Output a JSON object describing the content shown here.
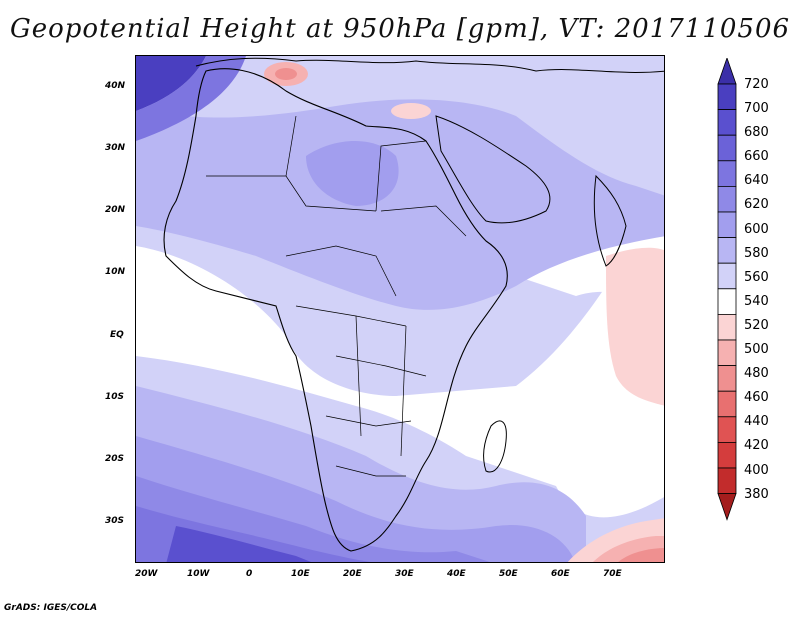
{
  "title": "Geopotential Height at 950hPa [gpm], VT: 2017110506",
  "credit": "GrADS: IGES/COLA",
  "axes": {
    "lon_ticks": [
      "20W",
      "10W",
      "0",
      "10E",
      "20E",
      "30E",
      "40E",
      "50E",
      "60E",
      "70E"
    ],
    "lat_ticks": [
      "40N",
      "30N",
      "20N",
      "10N",
      "EQ",
      "10S",
      "20S",
      "30S"
    ]
  },
  "colorbar": {
    "labels": [
      "720",
      "700",
      "680",
      "660",
      "640",
      "620",
      "600",
      "580",
      "560",
      "540",
      "520",
      "500",
      "480",
      "460",
      "440",
      "420",
      "400",
      "380"
    ],
    "colors": [
      "#3b2fa8",
      "#4a3fc0",
      "#5a50cf",
      "#6b62d8",
      "#7d75e0",
      "#8f89e7",
      "#a29eee",
      "#b8b6f3",
      "#d2d2f8",
      "#ffffff",
      "#fbd4d4",
      "#f6b1b1",
      "#ef9090",
      "#e87070",
      "#e05353",
      "#d43d3d",
      "#c22c2c",
      "#a41d1d"
    ]
  },
  "chart_data": {
    "type": "heatmap",
    "variable": "Geopotential Height at 950hPa [gpm]",
    "valid_time": "2017110506",
    "lon_range": [
      -22,
      80
    ],
    "lat_range": [
      -37,
      45
    ],
    "levels": [
      380,
      400,
      420,
      440,
      460,
      480,
      500,
      520,
      540,
      560,
      580,
      600,
      620,
      640,
      660,
      680,
      700,
      720
    ]
  }
}
